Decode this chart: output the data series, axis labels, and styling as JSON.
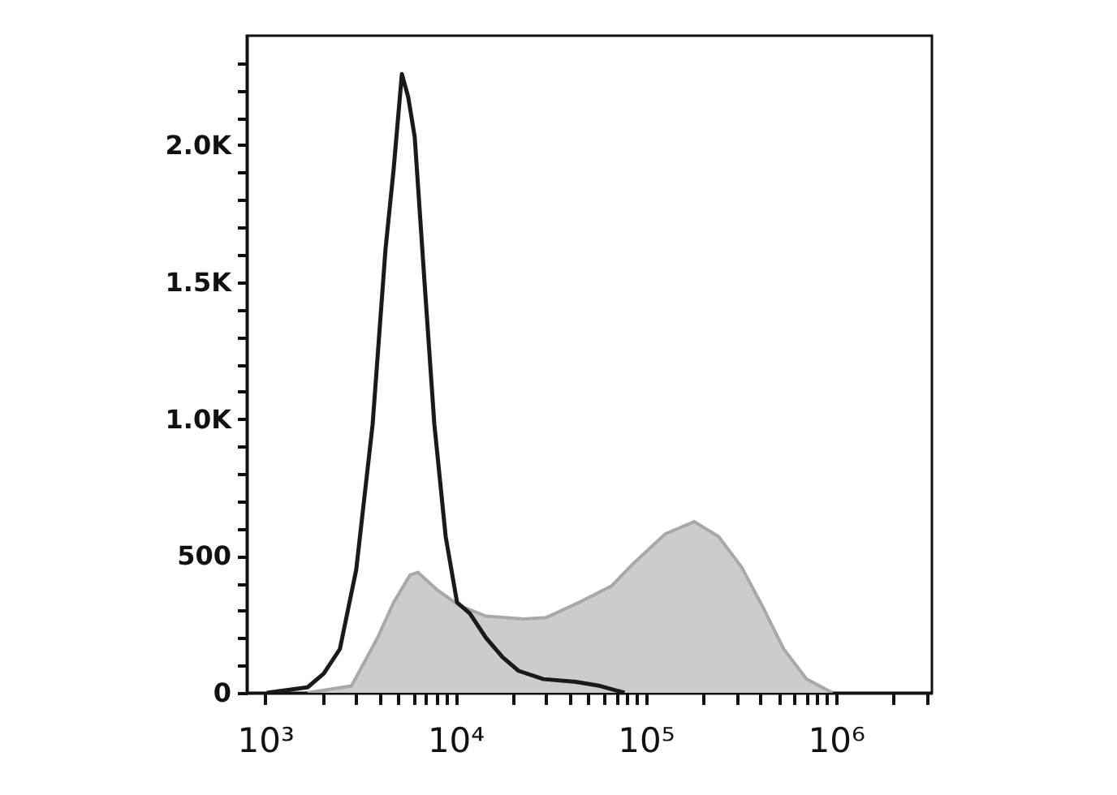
{
  "chart_data": {
    "type": "area",
    "log": "x",
    "grid": false,
    "xlim": [
      800,
      3200000
    ],
    "xticks": [
      {
        "value": 1000,
        "label": "10³"
      },
      {
        "value": 2000,
        "label": null
      },
      {
        "value": 3000,
        "label": null
      },
      {
        "value": 4000,
        "label": null
      },
      {
        "value": 5000,
        "label": null
      },
      {
        "value": 6000,
        "label": null
      },
      {
        "value": 7000,
        "label": null
      },
      {
        "value": 8000,
        "label": null
      },
      {
        "value": 9000,
        "label": null
      },
      {
        "value": 10000,
        "label": "10⁴"
      },
      {
        "value": 20000,
        "label": null
      },
      {
        "value": 30000,
        "label": null
      },
      {
        "value": 40000,
        "label": null
      },
      {
        "value": 50000,
        "label": null
      },
      {
        "value": 60000,
        "label": null
      },
      {
        "value": 70000,
        "label": null
      },
      {
        "value": 80000,
        "label": null
      },
      {
        "value": 90000,
        "label": null
      },
      {
        "value": 100000,
        "label": "10⁵"
      },
      {
        "value": 200000,
        "label": null
      },
      {
        "value": 300000,
        "label": null
      },
      {
        "value": 400000,
        "label": null
      },
      {
        "value": 500000,
        "label": null
      },
      {
        "value": 600000,
        "label": null
      },
      {
        "value": 700000,
        "label": null
      },
      {
        "value": 800000,
        "label": null
      },
      {
        "value": 900000,
        "label": null
      },
      {
        "value": 1000000,
        "label": "10⁶"
      },
      {
        "value": 2000000,
        "label": null
      },
      {
        "value": 3000000,
        "label": null
      }
    ],
    "ylim": [
      0,
      2400
    ],
    "yticks": [
      0,
      {
        "value": 100,
        "label": null
      },
      {
        "value": 200,
        "label": null
      },
      {
        "value": 300,
        "label": null
      },
      {
        "value": 400,
        "label": null
      },
      500,
      {
        "value": 600,
        "label": null
      },
      {
        "value": 700,
        "label": null
      },
      {
        "value": 800,
        "label": null
      },
      {
        "value": 900,
        "label": null
      },
      {
        "value": 1000,
        "label": "1.0K"
      },
      {
        "value": 1100,
        "label": null
      },
      {
        "value": 1200,
        "label": null
      },
      {
        "value": 1300,
        "label": null
      },
      {
        "value": 1400,
        "label": null
      },
      {
        "value": 1500,
        "label": "1.5K"
      },
      {
        "value": 1600,
        "label": null
      },
      {
        "value": 1700,
        "label": null
      },
      {
        "value": 1800,
        "label": null
      },
      {
        "value": 1900,
        "label": null
      },
      {
        "value": 2000,
        "label": "2.0K"
      },
      {
        "value": 2100,
        "label": null
      },
      {
        "value": 2200,
        "label": null
      },
      {
        "value": 2300,
        "label": null
      }
    ],
    "series": [
      {
        "type": "area",
        "color": "#cccccc",
        "x": [
          1670,
          2840,
          3890,
          4730,
          5770,
          6350,
          8050,
          10400,
          14500,
          22900,
          30100,
          44700,
          66200,
          85500,
          126800,
          180000,
          242000,
          319000,
          412000,
          532000,
          702000,
          962000
        ],
        "values": [
          0,
          25,
          200,
          330,
          430,
          440,
          375,
          320,
          280,
          270,
          275,
          330,
          390,
          470,
          580,
          625,
          570,
          460,
          315,
          160,
          50,
          0
        ]
      },
      {
        "type": "line",
        "color": "#1a1a1a",
        "x": [
          1020,
          1670,
          2030,
          2470,
          3010,
          3670,
          4290,
          4730,
          5230,
          5650,
          6110,
          6880,
          7750,
          8890,
          10200,
          11900,
          14500,
          17700,
          21500,
          29000,
          42900,
          57600,
          77500
        ],
        "values": [
          0,
          20,
          70,
          160,
          450,
          980,
          1620,
          1910,
          2260,
          2175,
          2030,
          1500,
          980,
          570,
          330,
          290,
          200,
          130,
          80,
          50,
          40,
          25,
          0
        ]
      }
    ]
  }
}
